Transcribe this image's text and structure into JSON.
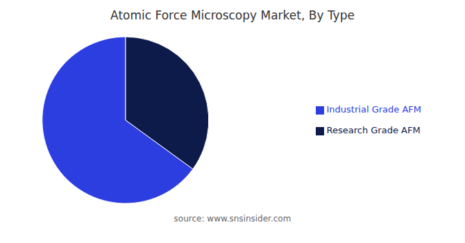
{
  "chart_data": {
    "type": "pie",
    "title": "Atomic Force Microscopy Market, By Type",
    "categories": [
      "Research Grade AFM",
      "Industrial Grade AFM"
    ],
    "values": [
      35,
      65
    ],
    "colors": [
      "#0d1b4b",
      "#2d3ee0"
    ],
    "legend": "right",
    "annotations": [
      "source: www.snsinsider.com"
    ]
  }
}
